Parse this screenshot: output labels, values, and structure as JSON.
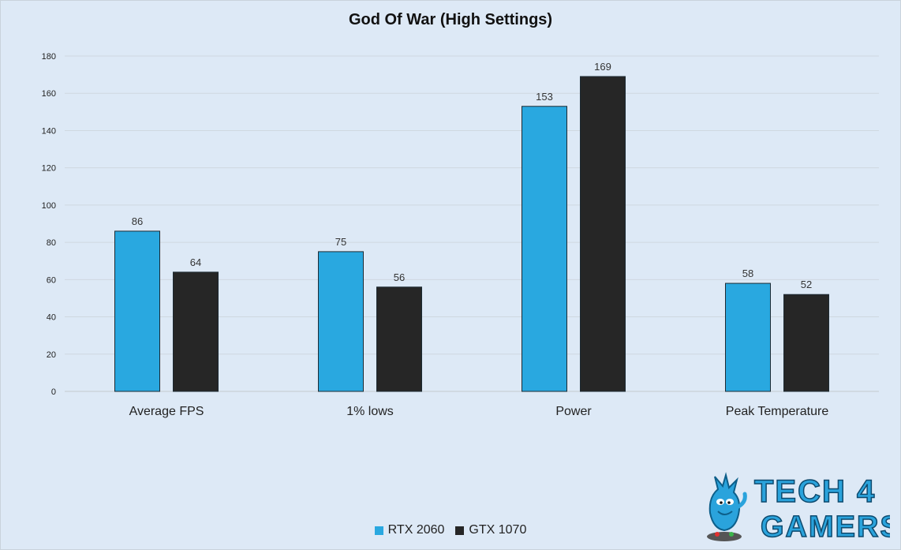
{
  "chart_data": {
    "type": "bar",
    "title": "God Of War (High Settings)",
    "categories": [
      "Average FPS",
      "1% lows",
      "Power",
      "Peak Temperature"
    ],
    "series": [
      {
        "name": "RTX 2060",
        "color": "#29a8e0",
        "values": [
          86,
          75,
          153,
          58
        ]
      },
      {
        "name": "GTX 1070",
        "color": "#262626",
        "values": [
          64,
          56,
          169,
          52
        ]
      }
    ],
    "ylim": [
      0,
      180
    ],
    "yticks": [
      0,
      20,
      40,
      60,
      80,
      100,
      120,
      140,
      160,
      180
    ],
    "grid": true,
    "legend_position": "bottom"
  },
  "watermark": {
    "text_line1": "TECH 4",
    "text_line2": "GAMERS",
    "color": "#2aa3dc"
  }
}
